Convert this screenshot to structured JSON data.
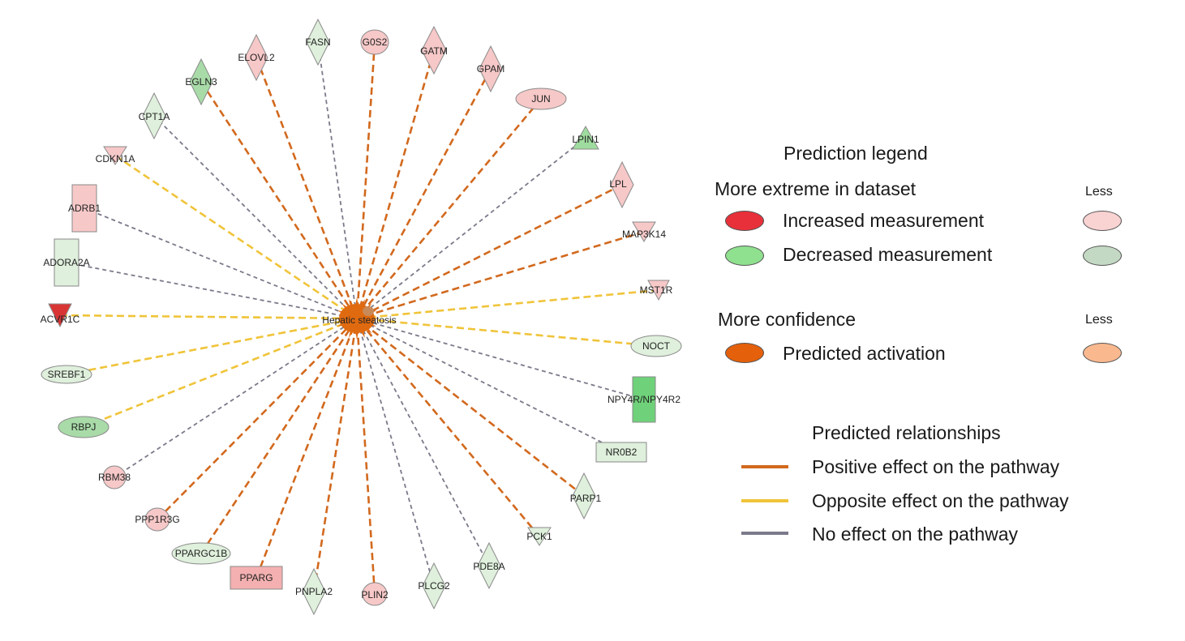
{
  "network": {
    "center": {
      "label": "Hepatic steatosis",
      "color": "#e06a10"
    },
    "nodes": [
      {
        "id": "g0s2",
        "label": "G0S2",
        "shape": "circle",
        "fill": "#f7c8c8",
        "edge": "positive"
      },
      {
        "id": "gatm",
        "label": "GATM",
        "shape": "diamond",
        "fill": "#f7c8c8",
        "edge": "positive"
      },
      {
        "id": "gpam",
        "label": "GPAM",
        "shape": "diamond",
        "fill": "#f7c8c8",
        "edge": "positive"
      },
      {
        "id": "jun",
        "label": "JUN",
        "shape": "ellipse",
        "fill": "#f7c8c8",
        "edge": "positive"
      },
      {
        "id": "lpin1",
        "label": "LPIN1",
        "shape": "triangle-up",
        "fill": "#9fdc9f",
        "edge": "none"
      },
      {
        "id": "lpl",
        "label": "LPL",
        "shape": "diamond",
        "fill": "#f7c8c8",
        "edge": "positive"
      },
      {
        "id": "map3k14",
        "label": "MAP3K14",
        "shape": "triangle-down",
        "fill": "#f7c8c8",
        "edge": "positive"
      },
      {
        "id": "mst1r",
        "label": "MST1R",
        "shape": "triangle-down",
        "fill": "#f7c8c8",
        "edge": "opposite"
      },
      {
        "id": "noct",
        "label": "NOCT",
        "shape": "ellipse",
        "fill": "#dff0dc",
        "edge": "opposite"
      },
      {
        "id": "npy4r",
        "label": "NPY4R/NPY4R2",
        "shape": "rect",
        "fill": "#6fd27a",
        "edge": "none"
      },
      {
        "id": "nr0b2",
        "label": "NR0B2",
        "shape": "rect",
        "fill": "#dff0dc",
        "edge": "none"
      },
      {
        "id": "parp1",
        "label": "PARP1",
        "shape": "diamond",
        "fill": "#dff0dc",
        "edge": "positive"
      },
      {
        "id": "pck1",
        "label": "PCK1",
        "shape": "triangle-down",
        "fill": "#dff0dc",
        "edge": "positive"
      },
      {
        "id": "pde8a",
        "label": "PDE8A",
        "shape": "diamond",
        "fill": "#dff0dc",
        "edge": "none"
      },
      {
        "id": "plcg2",
        "label": "PLCG2",
        "shape": "diamond",
        "fill": "#dff0dc",
        "edge": "none"
      },
      {
        "id": "plin2",
        "label": "PLIN2",
        "shape": "circle",
        "fill": "#f7c8c8",
        "edge": "positive"
      },
      {
        "id": "pnpla2",
        "label": "PNPLA2",
        "shape": "diamond",
        "fill": "#dff0dc",
        "edge": "positive"
      },
      {
        "id": "pparg",
        "label": "PPARG",
        "shape": "rect",
        "fill": "#f4b0b0",
        "edge": "positive"
      },
      {
        "id": "ppargc1b",
        "label": "PPARGC1B",
        "shape": "ellipse",
        "fill": "#dff0dc",
        "edge": "positive"
      },
      {
        "id": "ppp1r3g",
        "label": "PPP1R3G",
        "shape": "circle",
        "fill": "#f7c8c8",
        "edge": "positive"
      },
      {
        "id": "rbm38",
        "label": "RBM38",
        "shape": "circle",
        "fill": "#f7c8c8",
        "edge": "none"
      },
      {
        "id": "rbpj",
        "label": "RBPJ",
        "shape": "ellipse",
        "fill": "#a8dba8",
        "edge": "opposite"
      },
      {
        "id": "srebf1",
        "label": "SREBF1",
        "shape": "ellipse",
        "fill": "#dff0dc",
        "edge": "opposite"
      },
      {
        "id": "acvr1c",
        "label": "ACVR1C",
        "shape": "triangle-down",
        "fill": "#d93535",
        "edge": "opposite"
      },
      {
        "id": "adora2a",
        "label": "ADORA2A",
        "shape": "rect",
        "fill": "#dff0dc",
        "edge": "none"
      },
      {
        "id": "adrb1",
        "label": "ADRB1",
        "shape": "rect",
        "fill": "#f7c8c8",
        "edge": "none"
      },
      {
        "id": "cdkn1a",
        "label": "CDKN1A",
        "shape": "triangle-down",
        "fill": "#f7c8c8",
        "edge": "opposite"
      },
      {
        "id": "cpt1a",
        "label": "CPT1A",
        "shape": "diamond",
        "fill": "#dff0dc",
        "edge": "none"
      },
      {
        "id": "egln3",
        "label": "EGLN3",
        "shape": "diamond",
        "fill": "#a8dba8",
        "edge": "positive"
      },
      {
        "id": "elovl2",
        "label": "ELOVL2",
        "shape": "diamond",
        "fill": "#f7c8c8",
        "edge": "positive"
      },
      {
        "id": "fasn",
        "label": "FASN",
        "shape": "diamond",
        "fill": "#dff0dc",
        "edge": "none"
      }
    ],
    "edge_colors": {
      "positive": "#d2691e",
      "opposite": "#f0c43a",
      "none": "#7a7a8a"
    }
  },
  "legend": {
    "title": "Prediction legend",
    "dataset_heading": "More extreme in dataset",
    "less_label_1": "Less",
    "increased": {
      "label": "Increased measurement",
      "color": "#e8303a",
      "less_color": "#f9d2d2"
    },
    "decreased": {
      "label": "Decreased measurement",
      "color": "#8fe08f",
      "less_color": "#c4d9c4"
    },
    "confidence_heading": "More confidence",
    "less_label_2": "Less",
    "activation": {
      "label": "Predicted activation",
      "color": "#e4600a",
      "less_color": "#f9b88e"
    },
    "relationships_title": "Predicted relationships",
    "positive": {
      "label": "Positive effect on the pathway",
      "color": "#d2691e"
    },
    "opposite": {
      "label": "Opposite effect on the pathway",
      "color": "#f0c43a"
    },
    "none": {
      "label": "No effect on the pathway",
      "color": "#7a7a8a"
    }
  }
}
